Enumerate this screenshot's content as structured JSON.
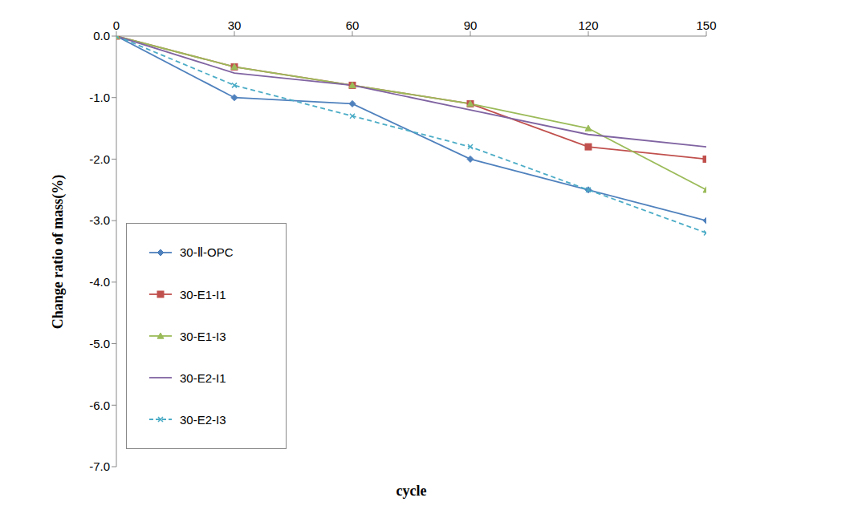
{
  "chart_data": {
    "type": "line",
    "x_label": "cycle",
    "y_label": "Change ratio of mass(%)",
    "x": [
      0,
      30,
      60,
      90,
      120,
      150
    ],
    "xlim": [
      0,
      150
    ],
    "xticks": [
      0,
      30,
      60,
      90,
      120,
      150
    ],
    "ylim": [
      -7,
      0
    ],
    "yticks": [
      {
        "value": 0,
        "label": "0.0"
      },
      {
        "value": -1,
        "label": "-1.0"
      },
      {
        "value": -2,
        "label": "-2.0"
      },
      {
        "value": -3,
        "label": "-3.0"
      },
      {
        "value": -4,
        "label": "-4.0"
      },
      {
        "value": -5,
        "label": "-5.0"
      },
      {
        "value": -6,
        "label": "-6.0"
      },
      {
        "value": -7,
        "label": "-7.0"
      }
    ],
    "grid": false,
    "legend": "lower left",
    "series": [
      {
        "name": "30-Ⅱ-OPC",
        "color": "#4f81bd",
        "marker": "diamond",
        "line_style": "solid",
        "values": [
          0,
          -1.0,
          -1.1,
          -2.0,
          -2.5,
          -3.0
        ]
      },
      {
        "name": "30-E1-I1",
        "color": "#c0504d",
        "marker": "square",
        "line_style": "solid",
        "values": [
          0,
          -0.5,
          -0.8,
          -1.1,
          -1.8,
          -2.0
        ]
      },
      {
        "name": "30-E1-I3",
        "color": "#9bbb59",
        "marker": "triangle",
        "line_style": "solid",
        "values": [
          0,
          -0.5,
          -0.8,
          -1.1,
          -1.5,
          -2.5
        ]
      },
      {
        "name": "30-E2-I1",
        "color": "#8064a2",
        "marker": "none",
        "line_style": "solid",
        "values": [
          0,
          -0.6,
          -0.8,
          -1.2,
          -1.6,
          -1.8
        ]
      },
      {
        "name": "30-E2-I3",
        "color": "#4bacc6",
        "marker": "x",
        "line_style": "dashed",
        "values": [
          0,
          -0.8,
          -1.3,
          -1.8,
          -2.5,
          -3.2
        ]
      }
    ]
  }
}
